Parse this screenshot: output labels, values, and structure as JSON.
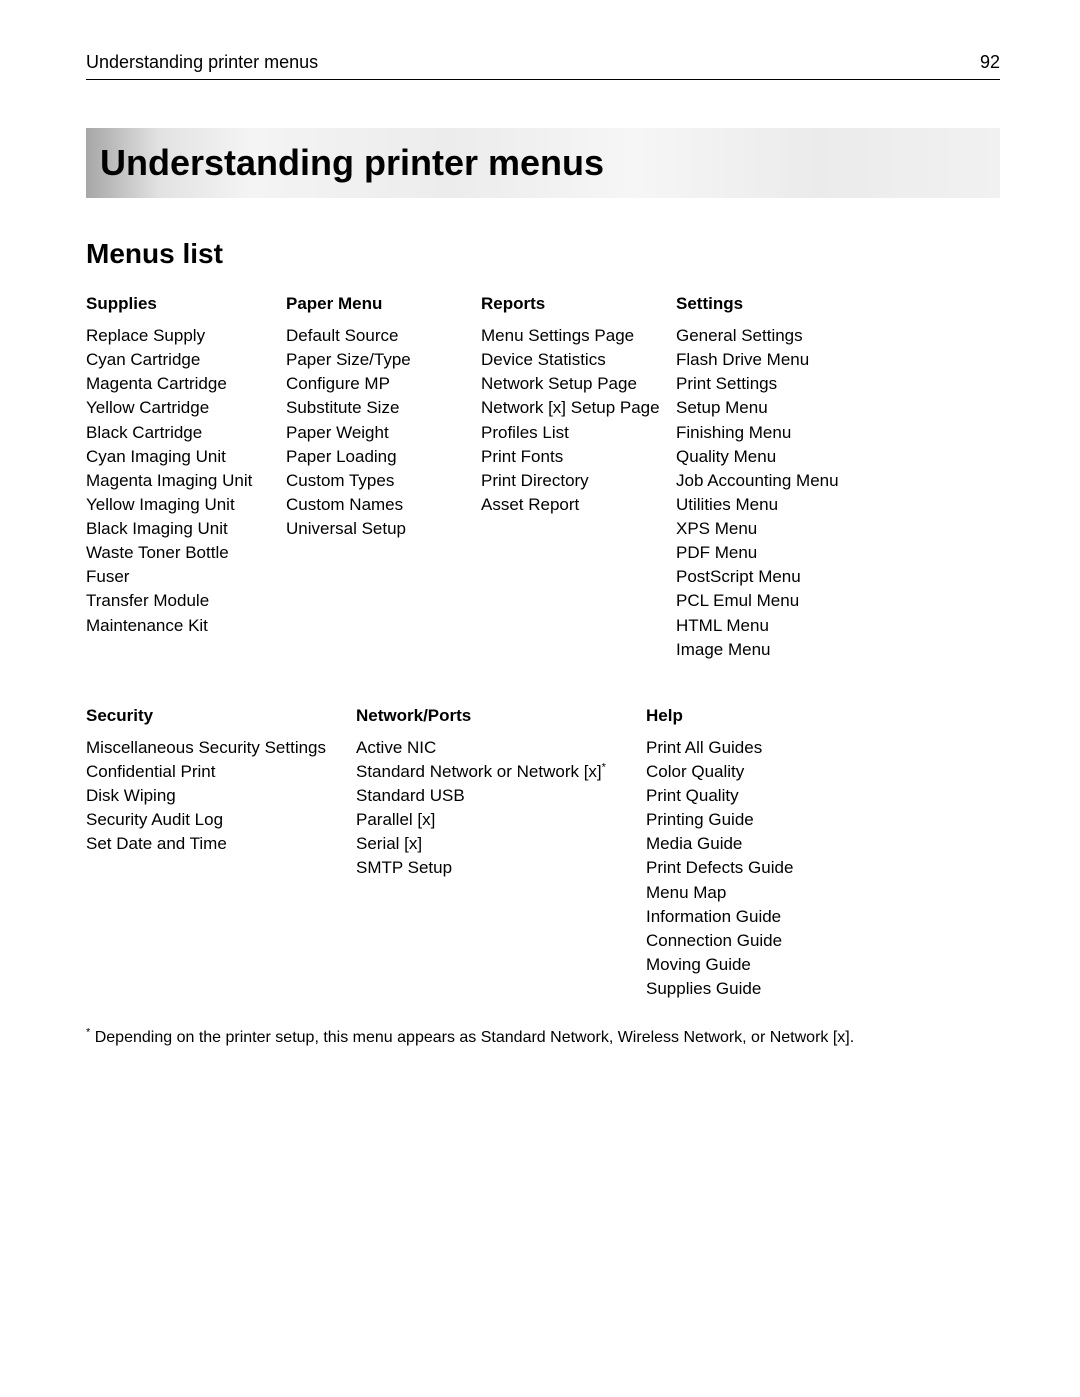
{
  "header": {
    "breadcrumb": "Understanding printer menus",
    "page_number": "92"
  },
  "banner_title": "Understanding printer menus",
  "section_title": "Menus list",
  "row1": [
    {
      "head": "Supplies",
      "items": [
        "Replace Supply",
        "Cyan Cartridge",
        "Magenta Cartridge",
        "Yellow Cartridge",
        "Black Cartridge",
        "Cyan Imaging Unit",
        "Magenta Imaging Unit",
        "Yellow Imaging Unit",
        "Black Imaging Unit",
        "Waste Toner Bottle",
        "Fuser",
        "Transfer Module",
        "Maintenance Kit"
      ]
    },
    {
      "head": "Paper Menu",
      "items": [
        "Default Source",
        "Paper Size/Type",
        "Configure MP",
        "Substitute Size",
        "Paper Weight",
        "Paper Loading",
        "Custom Types",
        "Custom Names",
        "Universal Setup"
      ]
    },
    {
      "head": "Reports",
      "items": [
        "Menu Settings Page",
        "Device Statistics",
        "Network Setup Page",
        "Network [x] Setup Page",
        "Profiles List",
        "Print Fonts",
        "Print Directory",
        "Asset Report"
      ]
    },
    {
      "head": "Settings",
      "items": [
        "General Settings",
        "Flash Drive Menu",
        "Print Settings",
        "Setup Menu",
        "Finishing Menu",
        "Quality Menu",
        "Job Accounting Menu",
        "Utilities Menu",
        "XPS Menu",
        "PDF Menu",
        "PostScript Menu",
        "PCL Emul Menu",
        "HTML Menu",
        "Image Menu"
      ]
    }
  ],
  "row2": [
    {
      "head": "Security",
      "items": [
        "Miscellaneous Security Settings",
        "Confidential Print",
        "Disk Wiping",
        "Security Audit Log",
        "Set Date and Time"
      ]
    },
    {
      "head": "Network/Ports",
      "items": [
        "Active NIC",
        "Standard Network or Network [x]",
        "Standard USB",
        "Parallel [x]",
        "Serial [x]",
        "SMTP Setup"
      ],
      "sup_index": 1
    },
    {
      "head": "Help",
      "items": [
        "Print All Guides",
        "Color Quality",
        "Print Quality",
        "Printing Guide",
        "Media Guide",
        "Print Defects Guide",
        "Menu Map",
        "Information Guide",
        "Connection Guide",
        "Moving Guide",
        "Supplies Guide"
      ]
    }
  ],
  "footnote_marker": "*",
  "footnote_text": " Depending on the printer setup, this menu appears as Standard Network, Wireless Network, or Network [x]."
}
